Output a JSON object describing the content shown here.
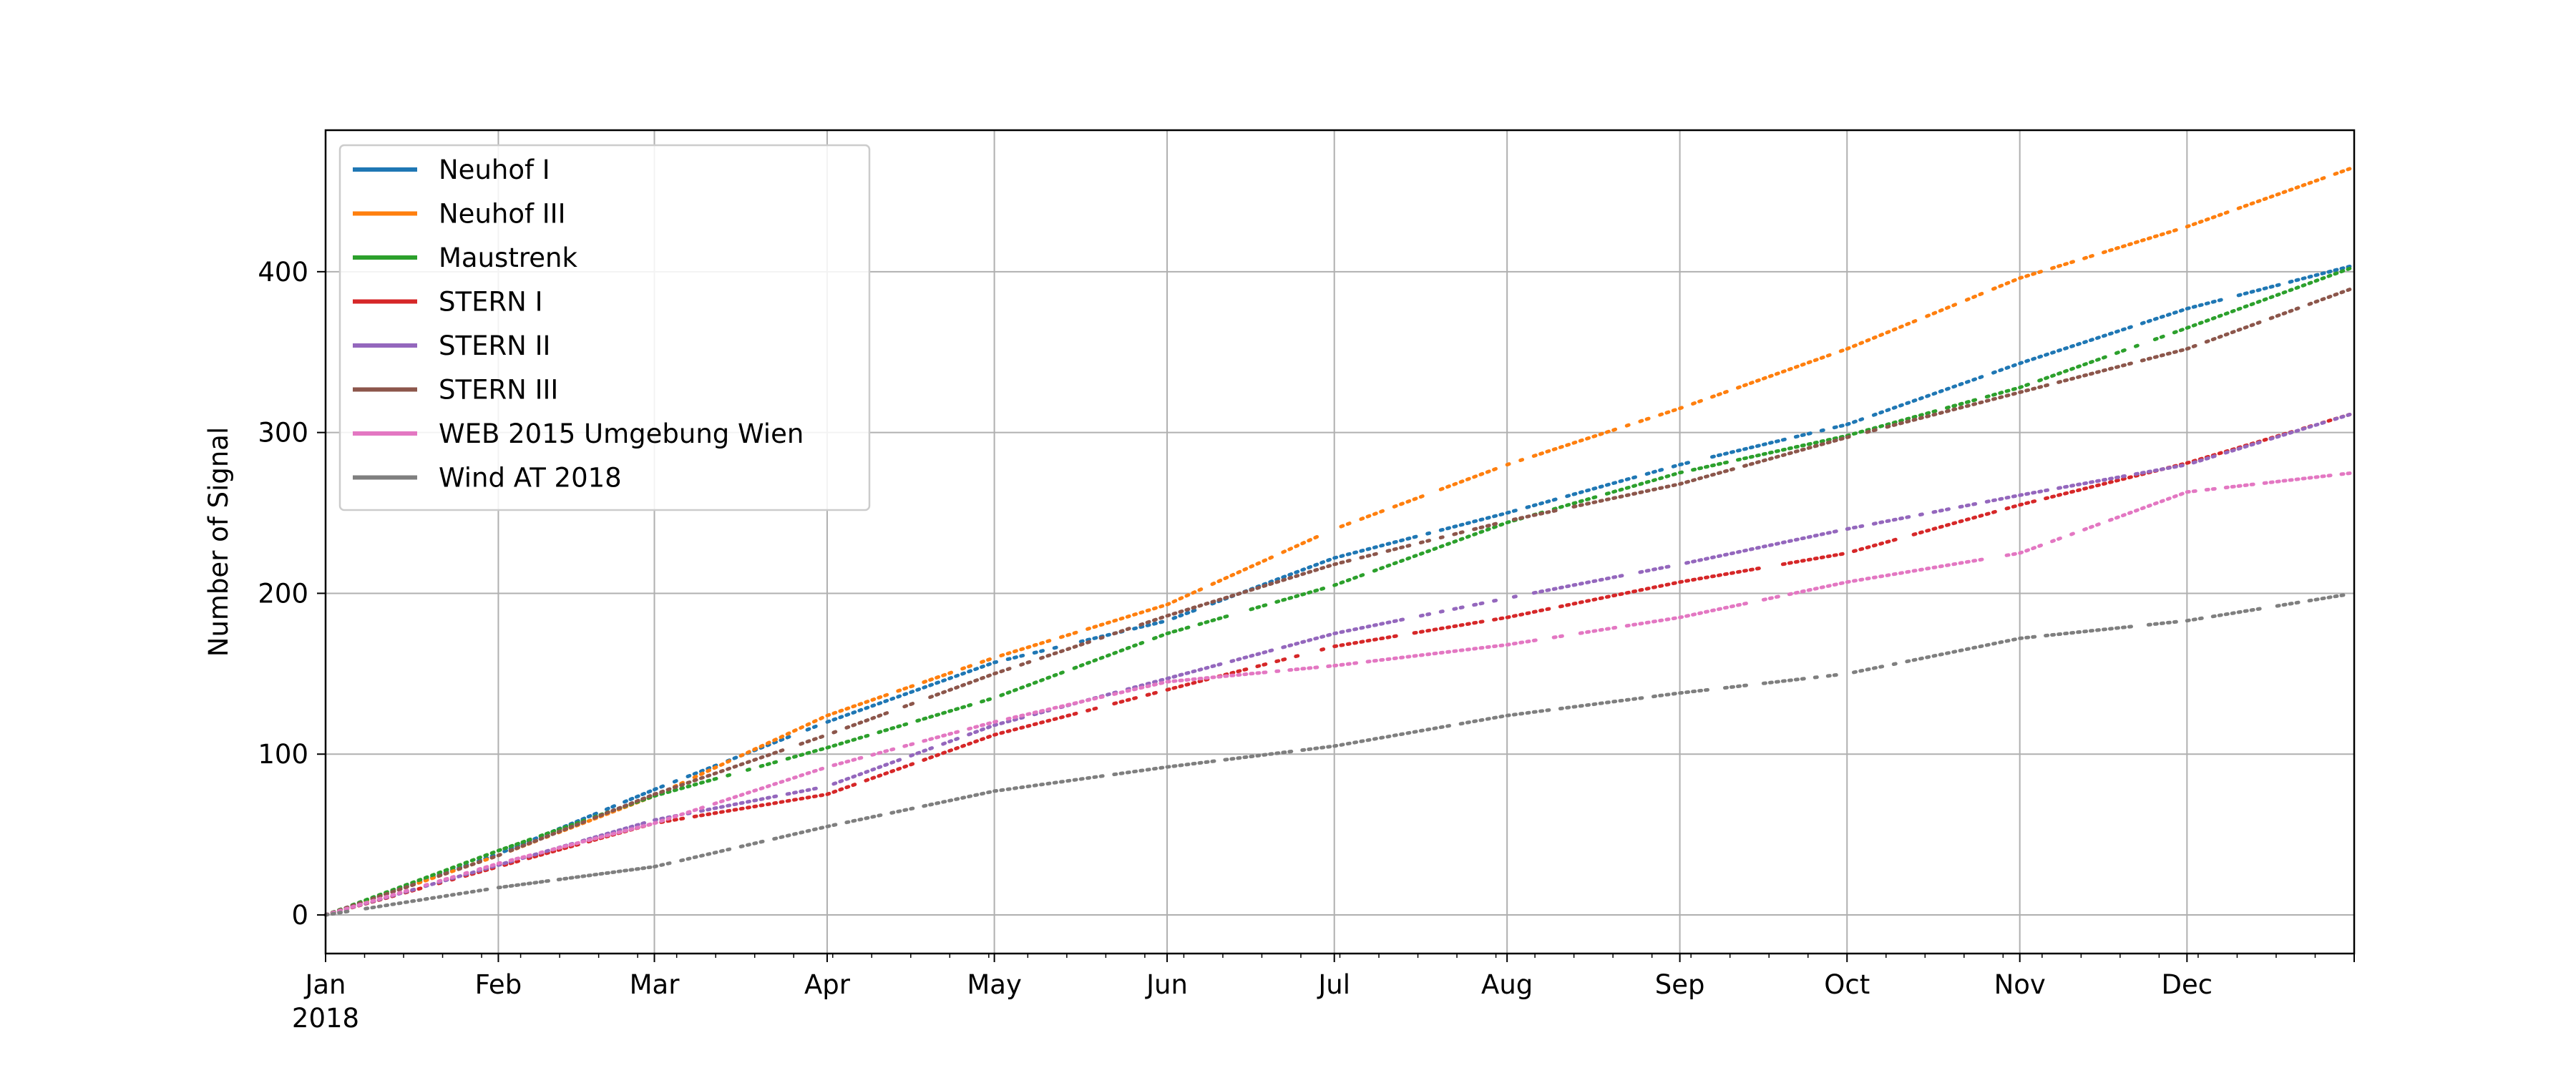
{
  "chart_data": {
    "type": "scatter",
    "xlabel": "",
    "ylabel": "Number of Signal",
    "x_unit": "date",
    "xlim": [
      "2018-01-01",
      "2018-12-31"
    ],
    "ylim": [
      -24,
      488
    ],
    "grid": true,
    "legend_position": "upper-left",
    "x_ticks": [
      {
        "date": "2018-01-01",
        "label": "Jan",
        "sublabel": "2018"
      },
      {
        "date": "2018-02-01",
        "label": "Feb"
      },
      {
        "date": "2018-03-01",
        "label": "Mar"
      },
      {
        "date": "2018-04-01",
        "label": "Apr"
      },
      {
        "date": "2018-05-01",
        "label": "May"
      },
      {
        "date": "2018-06-01",
        "label": "Jun"
      },
      {
        "date": "2018-07-01",
        "label": "Jul"
      },
      {
        "date": "2018-08-01",
        "label": "Aug"
      },
      {
        "date": "2018-09-01",
        "label": "Sep"
      },
      {
        "date": "2018-10-01",
        "label": "Oct"
      },
      {
        "date": "2018-11-01",
        "label": "Nov"
      },
      {
        "date": "2018-12-01",
        "label": "Dec"
      }
    ],
    "y_ticks": [
      0,
      100,
      200,
      300,
      400
    ],
    "series": [
      {
        "name": "Neuhof I",
        "color": "#1f77b4",
        "points": [
          [
            "2018-01-01",
            0
          ],
          [
            "2018-02-01",
            38
          ],
          [
            "2018-03-01",
            78
          ],
          [
            "2018-04-01",
            120
          ],
          [
            "2018-05-01",
            157
          ],
          [
            "2018-06-01",
            183
          ],
          [
            "2018-07-01",
            222
          ],
          [
            "2018-08-01",
            250
          ],
          [
            "2018-09-01",
            280
          ],
          [
            "2018-10-01",
            305
          ],
          [
            "2018-11-01",
            343
          ],
          [
            "2018-12-01",
            377
          ],
          [
            "2018-12-31",
            404
          ]
        ]
      },
      {
        "name": "Neuhof III",
        "color": "#ff7f0e",
        "points": [
          [
            "2018-01-01",
            0
          ],
          [
            "2018-02-01",
            37
          ],
          [
            "2018-03-01",
            74
          ],
          [
            "2018-04-01",
            124
          ],
          [
            "2018-05-01",
            160
          ],
          [
            "2018-06-01",
            193
          ],
          [
            "2018-07-01",
            240
          ],
          [
            "2018-08-01",
            280
          ],
          [
            "2018-09-01",
            315
          ],
          [
            "2018-10-01",
            352
          ],
          [
            "2018-11-01",
            396
          ],
          [
            "2018-12-01",
            428
          ],
          [
            "2018-12-31",
            465
          ]
        ]
      },
      {
        "name": "Maustrenk",
        "color": "#2ca02c",
        "points": [
          [
            "2018-01-01",
            0
          ],
          [
            "2018-02-01",
            40
          ],
          [
            "2018-03-01",
            74
          ],
          [
            "2018-04-01",
            104
          ],
          [
            "2018-05-01",
            135
          ],
          [
            "2018-06-01",
            175
          ],
          [
            "2018-07-01",
            205
          ],
          [
            "2018-08-01",
            244
          ],
          [
            "2018-09-01",
            275
          ],
          [
            "2018-10-01",
            298
          ],
          [
            "2018-11-01",
            328
          ],
          [
            "2018-12-01",
            365
          ],
          [
            "2018-12-31",
            403
          ]
        ]
      },
      {
        "name": "STERN I",
        "color": "#d62728",
        "points": [
          [
            "2018-01-01",
            0
          ],
          [
            "2018-02-01",
            30
          ],
          [
            "2018-03-01",
            57
          ],
          [
            "2018-04-01",
            75
          ],
          [
            "2018-05-01",
            112
          ],
          [
            "2018-06-01",
            140
          ],
          [
            "2018-07-01",
            167
          ],
          [
            "2018-08-01",
            185
          ],
          [
            "2018-09-01",
            207
          ],
          [
            "2018-10-01",
            225
          ],
          [
            "2018-11-01",
            255
          ],
          [
            "2018-12-01",
            281
          ],
          [
            "2018-12-31",
            312
          ]
        ]
      },
      {
        "name": "STERN II",
        "color": "#9467bd",
        "points": [
          [
            "2018-01-01",
            0
          ],
          [
            "2018-02-01",
            31
          ],
          [
            "2018-03-01",
            59
          ],
          [
            "2018-04-01",
            80
          ],
          [
            "2018-05-01",
            118
          ],
          [
            "2018-06-01",
            147
          ],
          [
            "2018-07-01",
            175
          ],
          [
            "2018-08-01",
            197
          ],
          [
            "2018-09-01",
            218
          ],
          [
            "2018-10-01",
            240
          ],
          [
            "2018-11-01",
            261
          ],
          [
            "2018-12-01",
            280
          ],
          [
            "2018-12-31",
            312
          ]
        ]
      },
      {
        "name": "STERN III",
        "color": "#8c564b",
        "points": [
          [
            "2018-01-01",
            0
          ],
          [
            "2018-02-01",
            37
          ],
          [
            "2018-03-01",
            75
          ],
          [
            "2018-04-01",
            112
          ],
          [
            "2018-05-01",
            150
          ],
          [
            "2018-06-01",
            186
          ],
          [
            "2018-07-01",
            218
          ],
          [
            "2018-08-01",
            245
          ],
          [
            "2018-09-01",
            268
          ],
          [
            "2018-10-01",
            297
          ],
          [
            "2018-11-01",
            325
          ],
          [
            "2018-12-01",
            352
          ],
          [
            "2018-12-31",
            390
          ]
        ]
      },
      {
        "name": "WEB 2015 Umgebung Wien",
        "color": "#e377c2",
        "points": [
          [
            "2018-01-01",
            0
          ],
          [
            "2018-02-01",
            32
          ],
          [
            "2018-03-01",
            57
          ],
          [
            "2018-04-01",
            92
          ],
          [
            "2018-05-01",
            120
          ],
          [
            "2018-06-01",
            145
          ],
          [
            "2018-07-01",
            155
          ],
          [
            "2018-08-01",
            168
          ],
          [
            "2018-09-01",
            185
          ],
          [
            "2018-10-01",
            207
          ],
          [
            "2018-11-01",
            225
          ],
          [
            "2018-12-01",
            263
          ],
          [
            "2018-12-31",
            275
          ]
        ]
      },
      {
        "name": "Wind AT 2018",
        "color": "#7f7f7f",
        "points": [
          [
            "2018-01-01",
            0
          ],
          [
            "2018-02-01",
            17
          ],
          [
            "2018-03-01",
            30
          ],
          [
            "2018-04-01",
            55
          ],
          [
            "2018-05-01",
            77
          ],
          [
            "2018-06-01",
            92
          ],
          [
            "2018-07-01",
            105
          ],
          [
            "2018-08-01",
            124
          ],
          [
            "2018-09-01",
            138
          ],
          [
            "2018-10-01",
            150
          ],
          [
            "2018-11-01",
            172
          ],
          [
            "2018-12-01",
            183
          ],
          [
            "2018-12-31",
            200
          ]
        ]
      }
    ]
  }
}
